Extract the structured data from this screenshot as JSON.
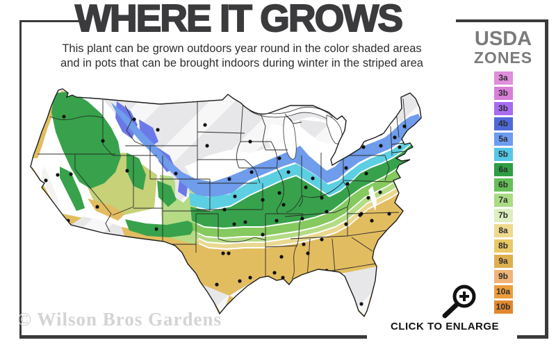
{
  "title": "WHERE IT GROWS",
  "subtitle": {
    "line1": "This plant can be grown outdoors year round in the color shaded areas",
    "line2": "and in pots that can be brought indoors during winter in the striped area"
  },
  "legend": {
    "title_line1": "USDA",
    "title_line2": "ZONES",
    "zones": [
      {
        "label": "3a",
        "color": "#df8fdb"
      },
      {
        "label": "3b",
        "color": "#d87fd8"
      },
      {
        "label": "3b",
        "color": "#a76cf0"
      },
      {
        "label": "4b",
        "color": "#4f6ad8"
      },
      {
        "label": "5a",
        "color": "#6d9cf0"
      },
      {
        "label": "5b",
        "color": "#55c8e8"
      },
      {
        "label": "6a",
        "color": "#2f9e44"
      },
      {
        "label": "6b",
        "color": "#66bf57"
      },
      {
        "label": "7a",
        "color": "#a9db85"
      },
      {
        "label": "7b",
        "color": "#ddefc0"
      },
      {
        "label": "8a",
        "color": "#eeda8e"
      },
      {
        "label": "8b",
        "color": "#e8c965"
      },
      {
        "label": "9a",
        "color": "#dfaf4f"
      },
      {
        "label": "9b",
        "color": "#f0b478"
      },
      {
        "label": "10a",
        "color": "#ec9d3b"
      },
      {
        "label": "10b",
        "color": "#e0882f"
      }
    ]
  },
  "map": {
    "description": "USDA hardiness zone map of the contiguous United States",
    "city_dots": [
      [
        62,
        56
      ],
      [
        118,
        91
      ],
      [
        163,
        60
      ],
      [
        197,
        75
      ],
      [
        265,
        68
      ],
      [
        268,
        98
      ],
      [
        330,
        92
      ],
      [
        372,
        116
      ],
      [
        53,
        140
      ],
      [
        36,
        148
      ],
      [
        72,
        139
      ],
      [
        153,
        134
      ],
      [
        223,
        138
      ],
      [
        110,
        186
      ],
      [
        68,
        206
      ],
      [
        133,
        230
      ],
      [
        195,
        218
      ],
      [
        300,
        146
      ],
      [
        308,
        171
      ],
      [
        293,
        190
      ],
      [
        332,
        136
      ],
      [
        385,
        136
      ],
      [
        372,
        166
      ],
      [
        378,
        183
      ],
      [
        410,
        158
      ],
      [
        433,
        173
      ],
      [
        468,
        130
      ],
      [
        470,
        153
      ],
      [
        420,
        145
      ],
      [
        517,
        165
      ],
      [
        497,
        138
      ],
      [
        493,
        100
      ],
      [
        518,
        98
      ],
      [
        522,
        76
      ],
      [
        538,
        86
      ],
      [
        552,
        70
      ],
      [
        545,
        100
      ],
      [
        500,
        173
      ],
      [
        490,
        196
      ],
      [
        530,
        196
      ],
      [
        505,
        206
      ],
      [
        488,
        198
      ],
      [
        468,
        211
      ],
      [
        433,
        233
      ],
      [
        413,
        253
      ],
      [
        407,
        240
      ],
      [
        405,
        203
      ],
      [
        440,
        193
      ],
      [
        368,
        206
      ],
      [
        375,
        258
      ],
      [
        348,
        226
      ],
      [
        348,
        176
      ],
      [
        323,
        208
      ],
      [
        307,
        211
      ],
      [
        291,
        253
      ],
      [
        299,
        253
      ],
      [
        315,
        293
      ],
      [
        282,
        298
      ],
      [
        330,
        288
      ],
      [
        365,
        281
      ],
      [
        377,
        288
      ],
      [
        440,
        278
      ],
      [
        466,
        305
      ],
      [
        490,
        326
      ]
    ]
  },
  "watermark": "© Wilson Bros Gardens",
  "enlarge": {
    "label": "CLICK TO ENLARGE",
    "icon": "magnifier-plus-icon"
  }
}
